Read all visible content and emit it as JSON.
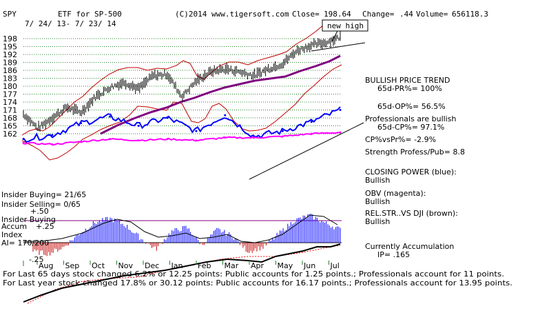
{
  "header": {
    "ticker": "SPY",
    "etf_label": "ETF for SP-500",
    "copyright": "(C)2014 www.tigersoft.com",
    "close_label": "Close=",
    "close_value": "198.64",
    "change_label": "Change=",
    "change_value": ".44",
    "volume_label": "Volume=",
    "volume_value": "656118.3",
    "date_range": "7/ 24/ 13- 7/ 23/ 14"
  },
  "callout": {
    "new_high": "new high"
  },
  "right_panel": {
    "lines": [
      "BULLISH PRICE TREND",
      "65d-PR%= 100%",
      "65d-OP%= 56.5%",
      "Professionals are bullish",
      "65d-CP%= 97.1%",
      "CP%vsPr%= -2.9%",
      "Strength Profess/Pub= 8.8",
      "CLOSING POWER (blue):",
      "Bullish",
      "OBV (magenta):",
      "Bullish",
      "REL.STR..VS DJI (brown):",
      "Bullish",
      "Currently Accumulation",
      "IP= .165"
    ]
  },
  "left_panel": {
    "insider_buying": "Insider Buying= 21/65",
    "insider_selling": "Insider Selling= 0/65",
    "plus_50": "+.50",
    "accum_title_1": "Insider Buying",
    "accum_title_2": "Accum",
    "plus_25": "+.25",
    "accum_title_3": "Index",
    "ai": "AI= 170/200",
    "minus_25": "-.25"
  },
  "footer": {
    "line1": "For Last 65 days stock changed 6.2% or 12.25 points: Public accounts for 1.25 points.; Professionals account for 11 points.",
    "line2": "For Last year stock changed 17.8% or 30.12 points: Public accounts for 16.17 points.; Professionals account for 13.95 points."
  },
  "colors": {
    "price_bars": "#000000",
    "bands": "#c00000",
    "ma_65": "#800080",
    "closing_power": "#0000ff",
    "obv": "#ff00ff",
    "rel_strength": "#ff0000",
    "accum_up": "#0000ff",
    "accum_down": "#c00000",
    "grid": "#208020"
  },
  "chart_data": {
    "type": "line",
    "x_months": [
      "Aug",
      "Sep",
      "Oct",
      "Nov",
      "Dec",
      "Jan",
      "Feb",
      "Mar",
      "Apr",
      "May",
      "Jun",
      "Jul"
    ],
    "y_ticks": [
      198,
      195,
      192,
      189,
      186,
      183,
      180,
      177,
      174,
      171,
      168,
      165,
      162
    ],
    "ylim": [
      159.5,
      200.5
    ],
    "series": [
      {
        "name": "SPY price",
        "x": [
          "Aug",
          "Sep",
          "Sep",
          "Oct",
          "Oct",
          "Nov",
          "Nov",
          "Dec",
          "Dec",
          "Jan",
          "Jan",
          "Feb",
          "Feb",
          "Mar",
          "Mar",
          "Apr",
          "Apr",
          "May",
          "May",
          "Jun",
          "Jun",
          "Jul",
          "Jul"
        ],
        "values": [
          169.5,
          164.0,
          168.0,
          172.0,
          170.0,
          176.0,
          179.5,
          181.5,
          179.0,
          184.0,
          184.5,
          176.0,
          182.0,
          185.5,
          186.5,
          185.5,
          184.0,
          186.5,
          188.5,
          193.5,
          195.5,
          196.5,
          198.6
        ]
      },
      {
        "name": "CLOSING POWER (blue)",
        "x": [
          "Aug",
          "Sep",
          "Oct",
          "Nov",
          "Dec",
          "Jan",
          "Feb",
          "Mar",
          "Apr",
          "May",
          "Jun",
          "Jul"
        ],
        "values": [
          160.0,
          161.5,
          166.0,
          168.5,
          165.0,
          168.0,
          163.0,
          169.0,
          161.0,
          163.0,
          166.5,
          171.0
        ]
      },
      {
        "name": "OBV (magenta)",
        "x": [
          "Aug",
          "Sep",
          "Oct",
          "Nov",
          "Dec",
          "Jan",
          "Feb",
          "Mar",
          "Apr",
          "May",
          "Jun",
          "Jul"
        ],
        "values": [
          158.5,
          158.0,
          159.0,
          160.0,
          159.5,
          160.0,
          159.5,
          160.5,
          160.5,
          161.0,
          162.0,
          162.5
        ]
      }
    ]
  }
}
